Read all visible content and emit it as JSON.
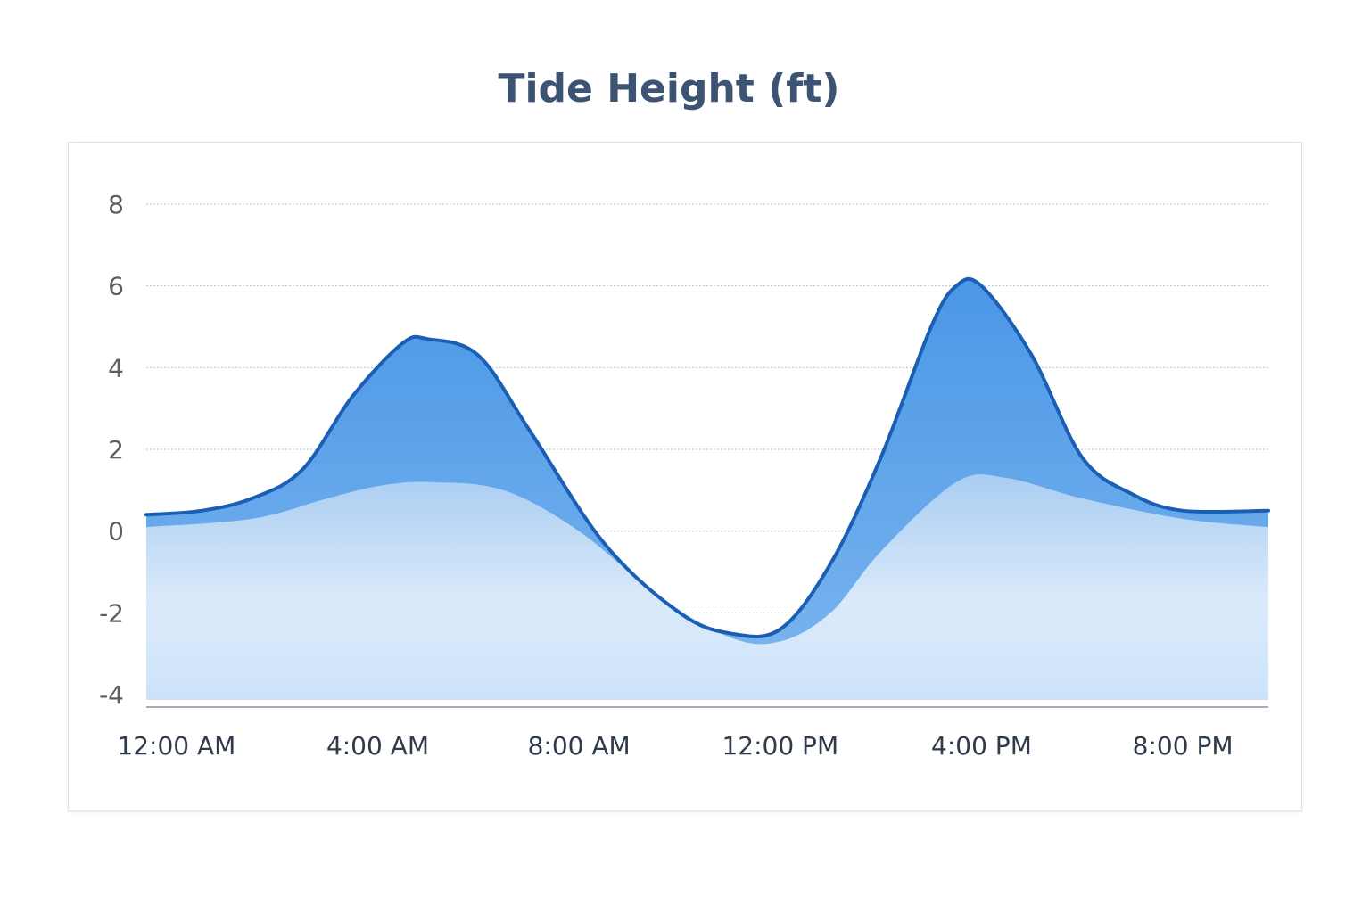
{
  "chart_data": {
    "type": "area",
    "title": "Tide Height (ft)",
    "xlabel": "",
    "ylabel": "",
    "ylim": [
      -4,
      8
    ],
    "yticks": [
      "8",
      "6",
      "4",
      "2",
      "0",
      "-2",
      "-4"
    ],
    "x_ticks": [
      "12:00 AM",
      "4:00 AM",
      "8:00 AM",
      "12:00 PM",
      "4:00 PM",
      "8:00 PM"
    ],
    "x_range_hours": [
      -0.6,
      21.7
    ],
    "grid": true,
    "series": [
      {
        "values_hours": [
          -0.6,
          0.5,
          1.5,
          2.5,
          3.5,
          4.5,
          5.0,
          6.0,
          7.0,
          8.5,
          10.0,
          11.0,
          12.0,
          13.0,
          14.0,
          15.0,
          15.5,
          16.0,
          17.0,
          18.0,
          19.0,
          20.0,
          21.7
        ],
        "values": [
          0.4,
          0.5,
          0.8,
          1.5,
          3.3,
          4.6,
          4.7,
          4.3,
          2.5,
          -0.3,
          -2.0,
          -2.5,
          -2.4,
          -0.8,
          1.8,
          5.0,
          6.0,
          6.0,
          4.3,
          1.8,
          0.9,
          0.5,
          0.5
        ],
        "color": "#1a5fb4"
      },
      {
        "values_hours": [
          -0.6,
          1.5,
          3.0,
          4.0,
          5.0,
          6.5,
          8.0,
          9.5,
          11.0,
          12.0,
          13.0,
          14.0,
          15.5,
          16.5,
          18.0,
          20.0,
          21.7
        ],
        "values": [
          0.1,
          0.3,
          0.8,
          1.1,
          1.2,
          1.0,
          0.0,
          -1.5,
          -2.6,
          -2.7,
          -2.0,
          -0.5,
          1.2,
          1.3,
          0.8,
          0.3,
          0.1
        ],
        "color": "#a9cdf2"
      }
    ],
    "colors": {
      "line": "#1a5fb4",
      "fill_top": "#4a97e6",
      "fill_bottom": "#bcd9f6",
      "grid": "#b8bec6",
      "axis": "#8c9198"
    }
  }
}
